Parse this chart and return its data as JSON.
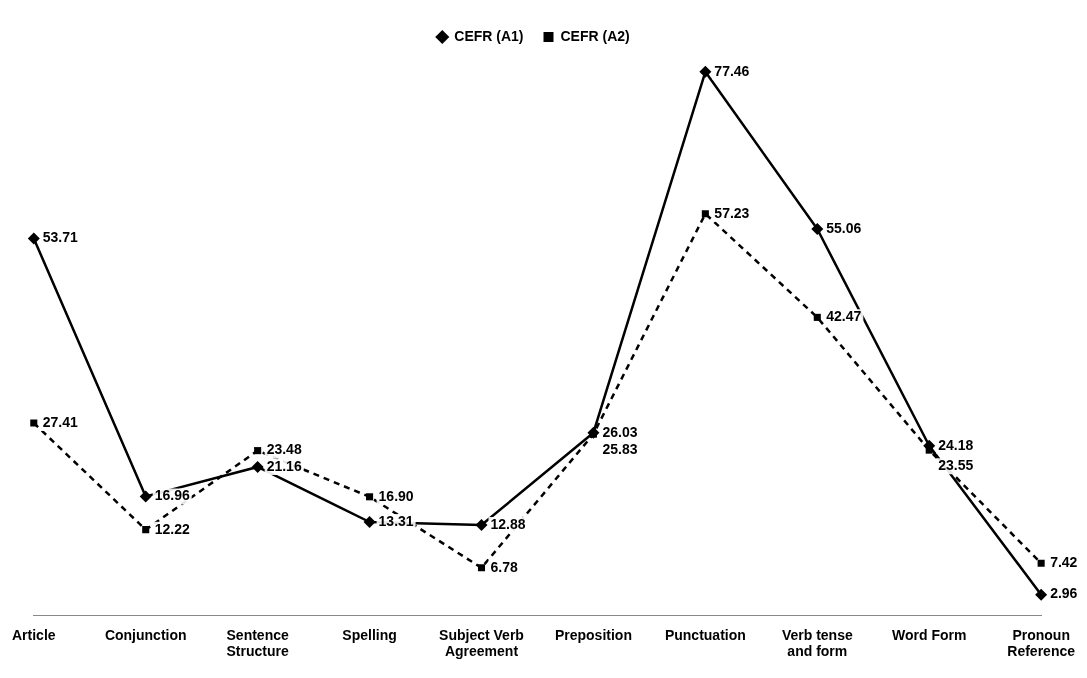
{
  "chart_data": {
    "type": "line",
    "categories": [
      "Article",
      "Conjunction",
      "Sentence Structure",
      "Spelling",
      "Subject Verb Agreement",
      "Preposition",
      "Punctuation",
      "Verb tense and form",
      "Word Form",
      "Pronoun Reference"
    ],
    "series": [
      {
        "name": "CEFR (A1)",
        "color": "#000000",
        "marker": "diamond",
        "line_style": "solid",
        "values": [
          53.71,
          16.96,
          21.16,
          13.31,
          12.88,
          26.03,
          77.46,
          55.06,
          24.18,
          2.96
        ],
        "value_labels": [
          "53.71",
          "16.96",
          "21.16",
          "13.31",
          "12.88",
          "26.03",
          "77.46",
          "55.06",
          "24.18",
          "2.96"
        ]
      },
      {
        "name": "CEFR (A2)",
        "color": "#000000",
        "marker": "square",
        "line_style": "dashed",
        "values": [
          27.41,
          12.22,
          23.48,
          16.9,
          6.78,
          25.83,
          57.23,
          42.47,
          23.55,
          7.42
        ],
        "value_labels": [
          "27.41",
          "12.22",
          "23.48",
          "16.90",
          "6.78",
          "25.83",
          "57.23",
          "42.47",
          "23.55",
          "7.42"
        ]
      }
    ],
    "legend": "top",
    "grid": false
  }
}
